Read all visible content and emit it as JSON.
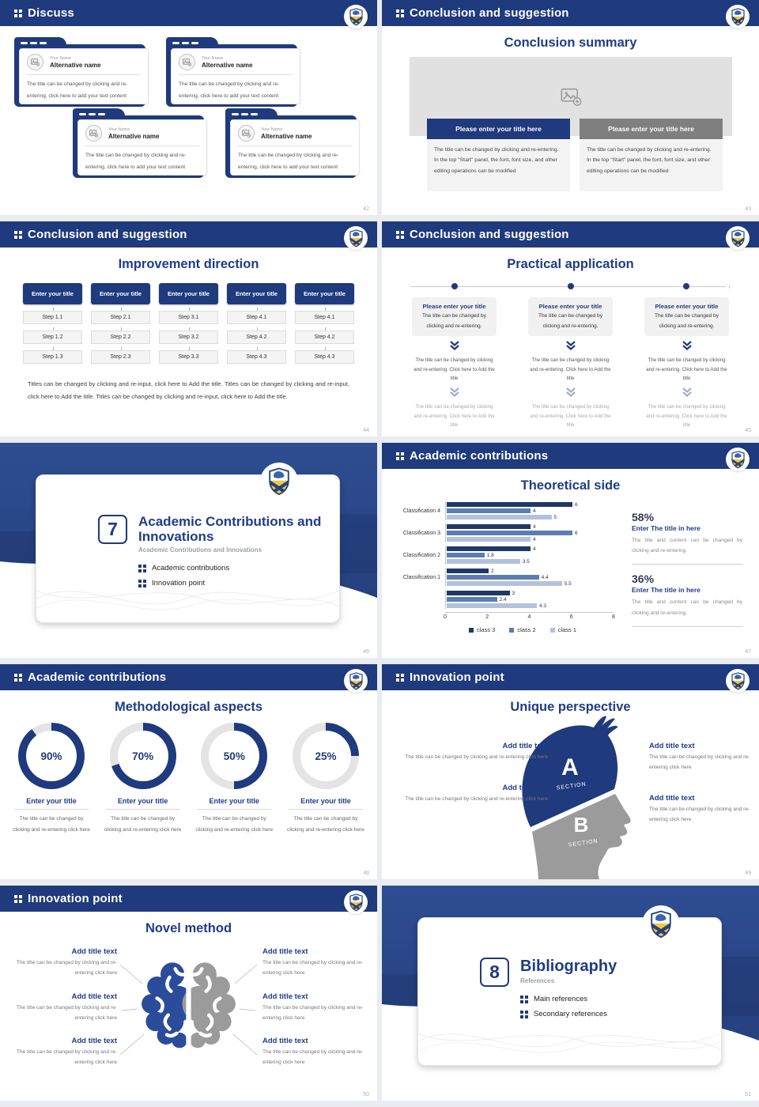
{
  "theme": {
    "navy": "#1f3a7d",
    "title_blue": "#1f3c87",
    "bar_gray": "#7f7f7f",
    "donut_track": "#e4e4e4"
  },
  "slides": {
    "discuss": {
      "header": "Discuss",
      "page": "42",
      "cards": [
        {
          "name": "Your Name",
          "alt_name": "Alternative name",
          "body": "The title can be changed by clicking and re-entering, click here to add your text content"
        },
        {
          "name": "Your Name",
          "alt_name": "Alternative name",
          "body": "The title can be changed by clicking and re-entering, click here to add your text content"
        },
        {
          "name": "Your Name",
          "alt_name": "Alternative name",
          "body": "The title can be changed by clicking and re-entering, click here to add your text content"
        },
        {
          "name": "Your Name",
          "alt_name": "Alternative name",
          "body": "The title can be changed by clicking and re-entering, click here to add your text content"
        }
      ]
    },
    "summary": {
      "header": "Conclusion and suggestion",
      "title": "Conclusion summary",
      "page": "43",
      "columns": [
        {
          "bar_label": "Please enter your title here",
          "bar_color": "#1f3a7d",
          "body": "The title can be changed by clicking and re-entering. In the top \"Start\" panel, the font, font size, and other editing operations can be modified"
        },
        {
          "bar_label": "Please enter your title here",
          "bar_color": "#7f7f7f",
          "body": "The title can be changed by clicking and re-entering. In the top \"Start\" panel, the font, font size, and other editing operations can be modified"
        }
      ]
    },
    "improvement": {
      "header": "Conclusion and suggestion",
      "title": "Improvement direction",
      "page": "44",
      "columns": [
        {
          "title": "Enter your title",
          "steps": [
            "Step 1.1",
            "Step 1.2",
            "Step 1.3"
          ]
        },
        {
          "title": "Enter your title",
          "steps": [
            "Step 2.1",
            "Step 2.2",
            "Step 2.3"
          ]
        },
        {
          "title": "Enter your title",
          "steps": [
            "Step 3.1",
            "Step 3.2",
            "Step 3.3"
          ]
        },
        {
          "title": "Enter your title",
          "steps": [
            "Step 4.1",
            "Step 4.2",
            "Step 4.3"
          ]
        },
        {
          "title": "Enter your title",
          "steps": [
            "Step 4.1",
            "Step 4.2",
            "Step 4.3"
          ]
        }
      ],
      "footer": "Titles can be changed by clicking and re-input, click here to Add the title. Titles can be changed by clicking and re-input, click here to Add the title. Titles can be changed by clicking and re-input, click here to Add the title."
    },
    "practical": {
      "header": "Conclusion and suggestion",
      "title": "Practical application",
      "page": "45",
      "columns": [
        {
          "title": "Please enter your title",
          "body": "The title can be changed by clicking and re-entering.",
          "mid": "The title can be changed by clicking and re-entering. Click here to Add the title",
          "bottom": "The title can be changed by clicking and re-entering. Click here to Add the title"
        },
        {
          "title": "Please enter your title",
          "body": "The title can be changed by clicking and re-entering.",
          "mid": "The title can be changed by clicking and re-entering. Click here to Add the title",
          "bottom": "The title can be changed by clicking and re-entering. Click here to Add the title"
        },
        {
          "title": "Please enter your title",
          "body": "The title can be changed by clicking and re-entering.",
          "mid": "The title can be changed by clicking and re-entering. Click here to Add the title",
          "bottom": "The title can be changed by clicking and re-entering. Click here to Add the title"
        }
      ]
    },
    "section7": {
      "number": "7",
      "title": "Academic Contributions and Innovations",
      "subtitle": "Academic Contributions and Innovations",
      "bullets": [
        "Academic contributions",
        "Innovation point"
      ],
      "page": "46"
    },
    "theoretical": {
      "header": "Academic contributions",
      "title": "Theoretical side",
      "page": "47",
      "chart_data": {
        "type": "bar",
        "orientation": "horizontal",
        "title": "Theoretical side",
        "categories": [
          "Classification 4",
          "Classification 3",
          "Classification 2",
          "Classification 1",
          ""
        ],
        "series": [
          {
            "name": "class 3",
            "color": "#1f3864",
            "values": [
              6,
              4,
              4,
              2,
              3
            ]
          },
          {
            "name": "class 2",
            "color": "#5b7db1",
            "values": [
              4,
              6,
              1.8,
              4.4,
              2.4
            ]
          },
          {
            "name": "class 1",
            "color": "#b3c2dc",
            "values": [
              5,
              4,
              3.5,
              5.5,
              4.3
            ]
          }
        ],
        "xlim": [
          0,
          8
        ],
        "xticks": [
          0,
          2,
          4,
          6,
          8
        ],
        "legend_position": "bottom",
        "grid": false
      },
      "stats": [
        {
          "pct": "58%",
          "title": "Enter The title in here",
          "body": "The title and content can be changed by clicking and re-entering."
        },
        {
          "pct": "36%",
          "title": "Enter The title in here",
          "body": "The title and content can be changed by clicking and re-entering."
        }
      ]
    },
    "methodological": {
      "header": "Academic contributions",
      "title": "Methodological aspects",
      "page": "48",
      "donuts": [
        {
          "pct": 90,
          "label": "90%",
          "title": "Enter your title",
          "body": "The title can be changed by clicking and re-entering click here"
        },
        {
          "pct": 70,
          "label": "70%",
          "title": "Enter your title",
          "body": "The title can be changed by clicking and re-entering click here"
        },
        {
          "pct": 50,
          "label": "50%",
          "title": "Enter your title",
          "body": "The title can be changed by clicking and re-entering click here"
        },
        {
          "pct": 25,
          "label": "25%",
          "title": "Enter your title",
          "body": "The title can be changed by clicking and re-entering click here"
        }
      ]
    },
    "unique": {
      "header": "Innovation point",
      "title": "Unique perspective",
      "page": "49",
      "section_a": "A",
      "section_b": "B",
      "section_label": "SECTION",
      "left_blocks": [
        {
          "title": "Add title text",
          "body": "The title can be changed by clicking and re-entering click here"
        },
        {
          "title": "Add title text",
          "body": "The title can be changed by clicking and re-entering click here"
        }
      ],
      "right_blocks": [
        {
          "title": "Add title text",
          "body": "The title can be changed by clicking and re-entering click here"
        },
        {
          "title": "Add title text",
          "body": "The title can be changed by clicking and re-entering click here"
        }
      ]
    },
    "novel": {
      "header": "Innovation point",
      "title": "Novel method",
      "page": "50",
      "left_blocks": [
        {
          "title": "Add title text",
          "body": "The title can be changed by clicking and re-entering click here"
        },
        {
          "title": "Add title text",
          "body": "The title can be changed by clicking and re-entering click here"
        },
        {
          "title": "Add title text",
          "body": "The title can be changed by clicking and re-entering click here"
        }
      ],
      "right_blocks": [
        {
          "title": "Add title text",
          "body": "The title can be changed by clicking and re-entering click here"
        },
        {
          "title": "Add title text",
          "body": "The title can be changed by clicking and re-entering click here"
        },
        {
          "title": "Add title text",
          "body": "The title can be changed by clicking and re-entering click here"
        }
      ]
    },
    "section8": {
      "number": "8",
      "title": "Bibliography",
      "subtitle": "References",
      "bullets": [
        "Main references",
        "Secondary references"
      ],
      "page": "51"
    }
  }
}
